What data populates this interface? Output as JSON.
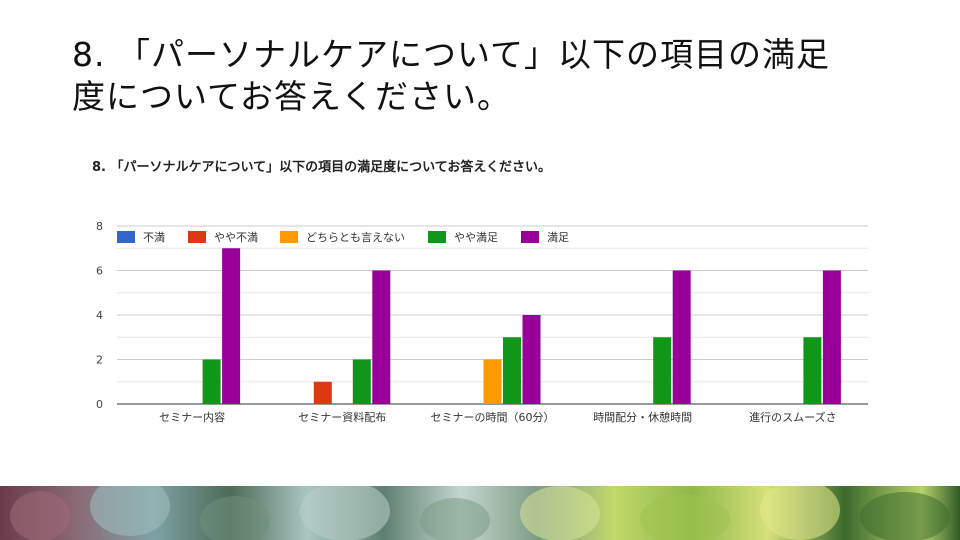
{
  "slide": {
    "title_line1": "8. 「パーソナルケアについて」以下の項目の満足",
    "title_line2": "度についてお答えください。"
  },
  "chart_data": {
    "type": "bar",
    "title": "8. 「パーソナルケアについて」以下の項目の満足度についてお答えください。",
    "categories": [
      "セミナー内容",
      "セミナー資料配布",
      "セミナーの時間（60分）",
      "時間配分・休憩時間",
      "進行のスムーズさ"
    ],
    "series": [
      {
        "name": "不満",
        "color": "#3366cc",
        "values": [
          0,
          0,
          0,
          0,
          0
        ]
      },
      {
        "name": "やや不満",
        "color": "#dc3912",
        "values": [
          0,
          1,
          0,
          0,
          0
        ]
      },
      {
        "name": "どちらとも言えない",
        "color": "#ff9900",
        "values": [
          0,
          0,
          2,
          0,
          0
        ]
      },
      {
        "name": "やや満足",
        "color": "#109618",
        "values": [
          2,
          2,
          3,
          3,
          3
        ]
      },
      {
        "name": "満足",
        "color": "#990099",
        "values": [
          7,
          6,
          4,
          6,
          6
        ]
      }
    ],
    "ylim": [
      0,
      8
    ],
    "yticks": [
      0,
      2,
      4,
      6,
      8
    ],
    "xlabel": "",
    "ylabel": "",
    "legend_position": "top-left",
    "grid": true
  },
  "footer": {
    "image": "succulent-plants-photo"
  }
}
